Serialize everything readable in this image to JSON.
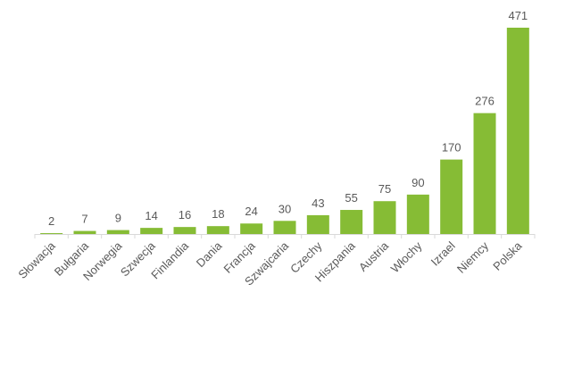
{
  "chart_data": {
    "type": "bar",
    "title": "",
    "xlabel": "",
    "ylabel": "",
    "categories": [
      "Słowacja",
      "Bułgaria",
      "Norwegia",
      "Szwecja",
      "Finlandia",
      "Dania",
      "Francja",
      "Szwajcaria",
      "Czechy",
      "Hiszpania",
      "Austria",
      "Włochy",
      "Izrael",
      "Niemcy",
      "Polska"
    ],
    "values": [
      2,
      7,
      9,
      14,
      16,
      18,
      24,
      30,
      43,
      55,
      75,
      90,
      170,
      276,
      471
    ],
    "data_labels": [
      "2",
      "7",
      "9",
      "14",
      "16",
      "18",
      "24",
      "30",
      "43",
      "55",
      "75",
      "90",
      "170",
      "276",
      "471"
    ],
    "ylim": [
      0,
      471
    ],
    "grid": false,
    "legend": "none",
    "bar_color": "#86bc35",
    "label_color": "#595959",
    "axis_color": "#d9d9d9"
  }
}
